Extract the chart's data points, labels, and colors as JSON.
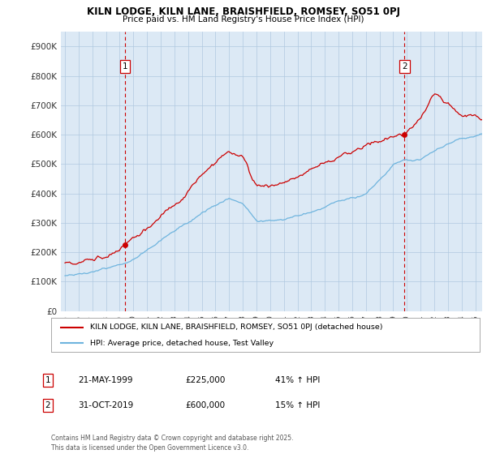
{
  "title1": "KILN LODGE, KILN LANE, BRAISHFIELD, ROMSEY, SO51 0PJ",
  "title2": "Price paid vs. HM Land Registry's House Price Index (HPI)",
  "legend_label1": "KILN LODGE, KILN LANE, BRAISHFIELD, ROMSEY, SO51 0PJ (detached house)",
  "legend_label2": "HPI: Average price, detached house, Test Valley",
  "annotation1_num": "1",
  "annotation1_date": "21-MAY-1999",
  "annotation1_price": "£225,000",
  "annotation1_hpi": "41% ↑ HPI",
  "annotation2_num": "2",
  "annotation2_date": "31-OCT-2019",
  "annotation2_price": "£600,000",
  "annotation2_hpi": "15% ↑ HPI",
  "footer": "Contains HM Land Registry data © Crown copyright and database right 2025.\nThis data is licensed under the Open Government Licence v3.0.",
  "sale1_year": 1999.38,
  "sale1_price": 225000,
  "sale2_year": 2019.83,
  "sale2_price": 600000,
  "hpi_color": "#6eb4de",
  "price_color": "#cc0000",
  "vline_color": "#cc0000",
  "chart_bg": "#dce9f5",
  "ylim_max": 950000,
  "xlim_start": 1994.7,
  "xlim_end": 2025.5,
  "background_color": "#ffffff",
  "grid_color": "#b0c8e0"
}
